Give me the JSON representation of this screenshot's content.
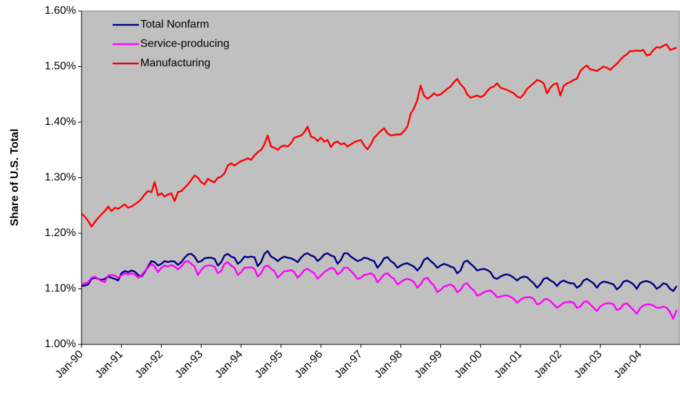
{
  "chart_data": {
    "type": "line",
    "y_label": "Share of U.S. Total",
    "categories": [
      "Jan-90",
      null,
      null,
      null,
      null,
      null,
      null,
      null,
      null,
      null,
      null,
      null,
      "Jan-91",
      null,
      null,
      null,
      null,
      null,
      null,
      null,
      null,
      null,
      null,
      null,
      "Jan-92",
      null,
      null,
      null,
      null,
      null,
      null,
      null,
      null,
      null,
      null,
      null,
      "Jan-93",
      null,
      null,
      null,
      null,
      null,
      null,
      null,
      null,
      null,
      null,
      null,
      "Jan-94",
      null,
      null,
      null,
      null,
      null,
      null,
      null,
      null,
      null,
      null,
      null,
      "Jan-95",
      null,
      null,
      null,
      null,
      null,
      null,
      null,
      null,
      null,
      null,
      null,
      "Jan-96",
      null,
      null,
      null,
      null,
      null,
      null,
      null,
      null,
      null,
      null,
      null,
      "Jan-97",
      null,
      null,
      null,
      null,
      null,
      null,
      null,
      null,
      null,
      null,
      null,
      "Jan-98",
      null,
      null,
      null,
      null,
      null,
      null,
      null,
      null,
      null,
      null,
      null,
      "Jan-99",
      null,
      null,
      null,
      null,
      null,
      null,
      null,
      null,
      null,
      null,
      null,
      "Jan-00",
      null,
      null,
      null,
      null,
      null,
      null,
      null,
      null,
      null,
      null,
      null,
      "Jan-01",
      null,
      null,
      null,
      null,
      null,
      null,
      null,
      null,
      null,
      null,
      null,
      "Jan-02",
      null,
      null,
      null,
      null,
      null,
      null,
      null,
      null,
      null,
      null,
      null,
      "Jan-03",
      null,
      null,
      null,
      null,
      null,
      null,
      null,
      null,
      null,
      null,
      null,
      "Jan-04",
      null,
      null,
      null,
      null,
      null,
      null,
      null,
      null,
      null,
      null,
      null
    ],
    "series": [
      {
        "name": "Total Nonfarm",
        "color": "#000080",
        "values": [
          1.105,
          1.106,
          1.108,
          1.118,
          1.12,
          1.118,
          1.116,
          1.118,
          1.122,
          1.12,
          1.118,
          1.115,
          1.128,
          1.132,
          1.13,
          1.133,
          1.131,
          1.125,
          1.122,
          1.13,
          1.14,
          1.15,
          1.148,
          1.142,
          1.145,
          1.15,
          1.148,
          1.15,
          1.149,
          1.143,
          1.148,
          1.156,
          1.162,
          1.163,
          1.158,
          1.148,
          1.15,
          1.155,
          1.156,
          1.156,
          1.154,
          1.142,
          1.148,
          1.16,
          1.163,
          1.158,
          1.156,
          1.145,
          1.15,
          1.158,
          1.157,
          1.158,
          1.157,
          1.141,
          1.148,
          1.163,
          1.168,
          1.158,
          1.155,
          1.15,
          1.155,
          1.158,
          1.156,
          1.155,
          1.152,
          1.148,
          1.156,
          1.162,
          1.164,
          1.16,
          1.158,
          1.15,
          1.155,
          1.162,
          1.164,
          1.16,
          1.158,
          1.145,
          1.152,
          1.164,
          1.164,
          1.158,
          1.154,
          1.15,
          1.152,
          1.156,
          1.155,
          1.152,
          1.15,
          1.138,
          1.145,
          1.155,
          1.157,
          1.15,
          1.146,
          1.138,
          1.142,
          1.145,
          1.146,
          1.143,
          1.14,
          1.133,
          1.14,
          1.152,
          1.156,
          1.15,
          1.145,
          1.138,
          1.142,
          1.145,
          1.143,
          1.14,
          1.138,
          1.128,
          1.133,
          1.148,
          1.151,
          1.145,
          1.14,
          1.133,
          1.135,
          1.136,
          1.134,
          1.13,
          1.12,
          1.118,
          1.122,
          1.125,
          1.126,
          1.124,
          1.12,
          1.115,
          1.12,
          1.122,
          1.121,
          1.115,
          1.11,
          1.102,
          1.108,
          1.118,
          1.12,
          1.115,
          1.112,
          1.105,
          1.112,
          1.115,
          1.112,
          1.11,
          1.11,
          1.102,
          1.106,
          1.115,
          1.118,
          1.114,
          1.11,
          1.102,
          1.11,
          1.113,
          1.112,
          1.11,
          1.108,
          1.099,
          1.104,
          1.113,
          1.115,
          1.112,
          1.108,
          1.1,
          1.11,
          1.113,
          1.114,
          1.112,
          1.108,
          1.1,
          1.104,
          1.11,
          1.108,
          1.1,
          1.096,
          1.105
        ]
      },
      {
        "name": "Service-producing",
        "color": "#ff00ff",
        "values": [
          1.108,
          1.11,
          1.112,
          1.12,
          1.122,
          1.118,
          1.114,
          1.112,
          1.124,
          1.125,
          1.124,
          1.12,
          1.124,
          1.128,
          1.126,
          1.128,
          1.126,
          1.12,
          1.124,
          1.132,
          1.138,
          1.145,
          1.14,
          1.13,
          1.138,
          1.142,
          1.14,
          1.143,
          1.14,
          1.135,
          1.14,
          1.148,
          1.15,
          1.145,
          1.14,
          1.125,
          1.134,
          1.14,
          1.142,
          1.142,
          1.14,
          1.128,
          1.132,
          1.145,
          1.148,
          1.142,
          1.138,
          1.125,
          1.13,
          1.138,
          1.138,
          1.139,
          1.136,
          1.122,
          1.128,
          1.14,
          1.142,
          1.136,
          1.132,
          1.12,
          1.126,
          1.132,
          1.132,
          1.134,
          1.13,
          1.12,
          1.126,
          1.134,
          1.136,
          1.132,
          1.128,
          1.118,
          1.124,
          1.13,
          1.134,
          1.138,
          1.136,
          1.126,
          1.13,
          1.138,
          1.138,
          1.132,
          1.126,
          1.118,
          1.12,
          1.125,
          1.126,
          1.128,
          1.124,
          1.112,
          1.118,
          1.126,
          1.128,
          1.122,
          1.118,
          1.108,
          1.112,
          1.116,
          1.118,
          1.116,
          1.112,
          1.102,
          1.108,
          1.118,
          1.12,
          1.112,
          1.106,
          1.094,
          1.098,
          1.104,
          1.106,
          1.108,
          1.104,
          1.094,
          1.098,
          1.108,
          1.11,
          1.102,
          1.097,
          1.088,
          1.09,
          1.094,
          1.096,
          1.097,
          1.092,
          1.085,
          1.086,
          1.088,
          1.088,
          1.086,
          1.082,
          1.075,
          1.08,
          1.084,
          1.085,
          1.085,
          1.082,
          1.072,
          1.074,
          1.08,
          1.082,
          1.078,
          1.072,
          1.066,
          1.07,
          1.075,
          1.076,
          1.077,
          1.075,
          1.066,
          1.068,
          1.076,
          1.078,
          1.072,
          1.066,
          1.06,
          1.068,
          1.072,
          1.074,
          1.074,
          1.072,
          1.062,
          1.064,
          1.072,
          1.074,
          1.068,
          1.062,
          1.055,
          1.065,
          1.07,
          1.072,
          1.072,
          1.07,
          1.066,
          1.066,
          1.068,
          1.066,
          1.058,
          1.046,
          1.062
        ]
      },
      {
        "name": "Manufacturing",
        "color": "#ff0000",
        "values": [
          1.235,
          1.23,
          1.222,
          1.212,
          1.22,
          1.228,
          1.234,
          1.24,
          1.248,
          1.24,
          1.246,
          1.244,
          1.248,
          1.252,
          1.246,
          1.248,
          1.252,
          1.256,
          1.262,
          1.27,
          1.276,
          1.274,
          1.292,
          1.268,
          1.272,
          1.266,
          1.27,
          1.272,
          1.258,
          1.274,
          1.276,
          1.282,
          1.288,
          1.296,
          1.304,
          1.3,
          1.292,
          1.288,
          1.298,
          1.294,
          1.292,
          1.3,
          1.302,
          1.308,
          1.322,
          1.326,
          1.322,
          1.326,
          1.33,
          1.332,
          1.335,
          1.332,
          1.34,
          1.346,
          1.35,
          1.36,
          1.376,
          1.356,
          1.354,
          1.35,
          1.356,
          1.358,
          1.356,
          1.362,
          1.372,
          1.374,
          1.376,
          1.382,
          1.392,
          1.374,
          1.372,
          1.366,
          1.372,
          1.365,
          1.368,
          1.355,
          1.363,
          1.365,
          1.36,
          1.362,
          1.356,
          1.36,
          1.364,
          1.366,
          1.368,
          1.358,
          1.351,
          1.36,
          1.372,
          1.378,
          1.384,
          1.389,
          1.38,
          1.376,
          1.377,
          1.378,
          1.378,
          1.384,
          1.392,
          1.415,
          1.425,
          1.44,
          1.466,
          1.448,
          1.442,
          1.446,
          1.452,
          1.448,
          1.45,
          1.455,
          1.46,
          1.464,
          1.472,
          1.478,
          1.468,
          1.462,
          1.45,
          1.444,
          1.446,
          1.448,
          1.445,
          1.448,
          1.456,
          1.462,
          1.464,
          1.47,
          1.462,
          1.46,
          1.458,
          1.455,
          1.452,
          1.446,
          1.444,
          1.45,
          1.46,
          1.465,
          1.47,
          1.476,
          1.474,
          1.47,
          1.452,
          1.462,
          1.468,
          1.47,
          1.448,
          1.465,
          1.47,
          1.472,
          1.476,
          1.478,
          1.492,
          1.498,
          1.502,
          1.495,
          1.494,
          1.492,
          1.496,
          1.5,
          1.498,
          1.494,
          1.5,
          1.505,
          1.512,
          1.518,
          1.522,
          1.528,
          1.528,
          1.529,
          1.528,
          1.53,
          1.52,
          1.522,
          1.53,
          1.535,
          1.534,
          1.538,
          1.54,
          1.53,
          1.532,
          1.534
        ]
      }
    ],
    "ylim": [
      1.0,
      1.6
    ],
    "yticks": [
      {
        "value": 1.0,
        "label": "1.00%"
      },
      {
        "value": 1.1,
        "label": "1.10%"
      },
      {
        "value": 1.2,
        "label": "1.20%"
      },
      {
        "value": 1.3,
        "label": "1.30%"
      },
      {
        "value": 1.4,
        "label": "1.40%"
      },
      {
        "value": 1.5,
        "label": "1.50%"
      },
      {
        "value": 1.6,
        "label": "1.60%"
      }
    ],
    "grid": false,
    "legend": "upper left",
    "background": "#c0c0c0"
  }
}
